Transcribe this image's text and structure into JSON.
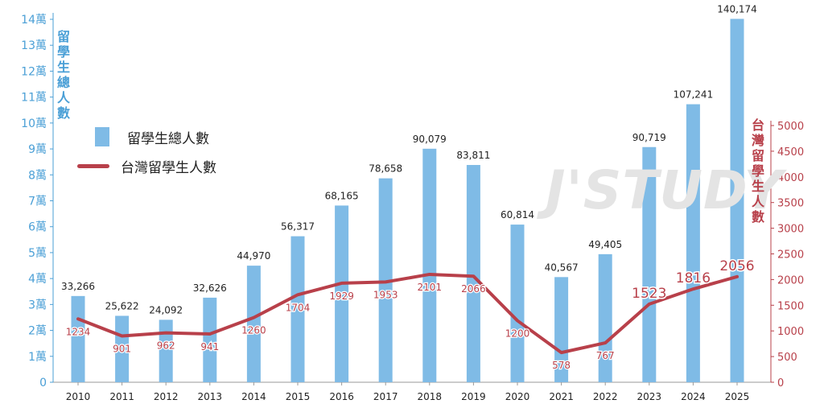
{
  "chart_data": {
    "type": "bar+line",
    "categories": [
      "2010",
      "2011",
      "2012",
      "2013",
      "2014",
      "2015",
      "2016",
      "2017",
      "2018",
      "2019",
      "2020",
      "2021",
      "2022",
      "2023",
      "2024",
      "2025"
    ],
    "series": [
      {
        "name": "留學生總人數",
        "type": "bar",
        "axis": "left",
        "color": "#7fbbe6",
        "values": [
          33266,
          25622,
          24092,
          32626,
          44970,
          56317,
          68165,
          78658,
          90079,
          83811,
          60814,
          40567,
          49405,
          90719,
          107241,
          140174
        ],
        "labels": [
          "33,266",
          "25,622",
          "24,092",
          "32,626",
          "44,970",
          "56,317",
          "68,165",
          "78,658",
          "90,079",
          "83,811",
          "60,814",
          "40,567",
          "49,405",
          "90,719",
          "107,241",
          "140,174"
        ]
      },
      {
        "name": "台灣留學生人數",
        "type": "line",
        "axis": "right",
        "color": "#b8404a",
        "values": [
          1234,
          901,
          962,
          941,
          1260,
          1704,
          1929,
          1953,
          2101,
          2066,
          1200,
          578,
          767,
          1523,
          1816,
          2056
        ],
        "labels": [
          "1234",
          "901",
          "962",
          "941",
          "1260",
          "1704",
          "1929",
          "1953",
          "2101",
          "2066",
          "1200",
          "578",
          "767",
          "1523",
          "1816",
          "2056"
        ]
      }
    ],
    "left_axis": {
      "title": "留學生總人數",
      "ylim": [
        0,
        140000
      ],
      "ticks": [
        0,
        10000,
        20000,
        30000,
        40000,
        50000,
        60000,
        70000,
        80000,
        90000,
        100000,
        110000,
        120000,
        130000,
        140000
      ],
      "tick_labels": [
        "0",
        "1萬",
        "2萬",
        "3萬",
        "4萬",
        "5萬",
        "6萬",
        "7萬",
        "8萬",
        "9萬",
        "10萬",
        "11萬",
        "12萬",
        "13萬",
        "14萬"
      ]
    },
    "right_axis": {
      "title": "台灣留學生人數",
      "ylim": [
        0,
        5000
      ],
      "ticks": [
        0,
        500,
        1000,
        1500,
        2000,
        2500,
        3000,
        3500,
        4000,
        4500,
        5000
      ],
      "tick_labels": [
        "0",
        "500",
        "1000",
        "1500",
        "2000",
        "2500",
        "3000",
        "3500",
        "4000",
        "4500",
        "5000"
      ]
    },
    "legend": {
      "placement": "upper-left",
      "bar_label": "留學生總人數",
      "line_label": "台灣留學生人數"
    },
    "grid": false
  },
  "watermark": "J'STUDY",
  "colors": {
    "bar": "#7fbbe6",
    "line": "#b8404a",
    "left_axis": "#4a9fd6",
    "right_axis": "#b8404a"
  }
}
